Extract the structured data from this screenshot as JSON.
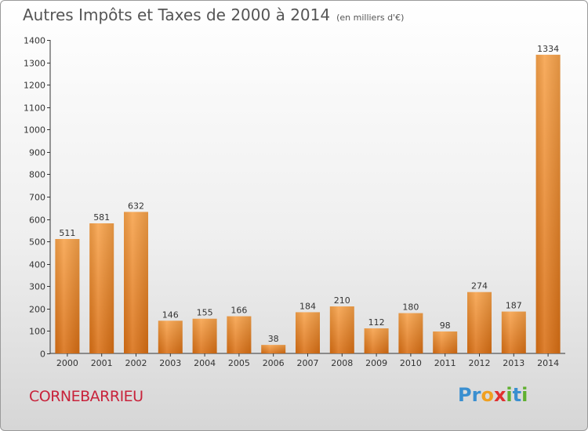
{
  "chart_data": {
    "type": "bar",
    "title": "Autres Impôts et Taxes de 2000 à 2014",
    "subtitle": "(en milliers d'€)",
    "xlabel": "",
    "ylabel": "",
    "categories": [
      "2000",
      "2001",
      "2002",
      "2003",
      "2004",
      "2005",
      "2006",
      "2007",
      "2008",
      "2009",
      "2010",
      "2011",
      "2012",
      "2013",
      "2014"
    ],
    "values": [
      511,
      581,
      632,
      146,
      155,
      166,
      38,
      184,
      210,
      112,
      180,
      98,
      274,
      187,
      1334
    ],
    "ylim": [
      0,
      1400
    ],
    "yticks": [
      0,
      100,
      200,
      300,
      400,
      500,
      600,
      700,
      800,
      900,
      1000,
      1100,
      1200,
      1300,
      1400
    ],
    "grid": false,
    "bar_color": "#f0922e"
  },
  "footer": {
    "commune": "CORNEBARRIEU",
    "brand_letters": [
      {
        "ch": "P",
        "color": "#3a8fd0"
      },
      {
        "ch": "r",
        "color": "#3a8fd0"
      },
      {
        "ch": "o",
        "color": "#f0a020"
      },
      {
        "ch": "x",
        "color": "#e03030"
      },
      {
        "ch": "i",
        "color": "#60b030"
      },
      {
        "ch": "t",
        "color": "#3a8fd0"
      },
      {
        "ch": "i",
        "color": "#60b030"
      }
    ]
  }
}
